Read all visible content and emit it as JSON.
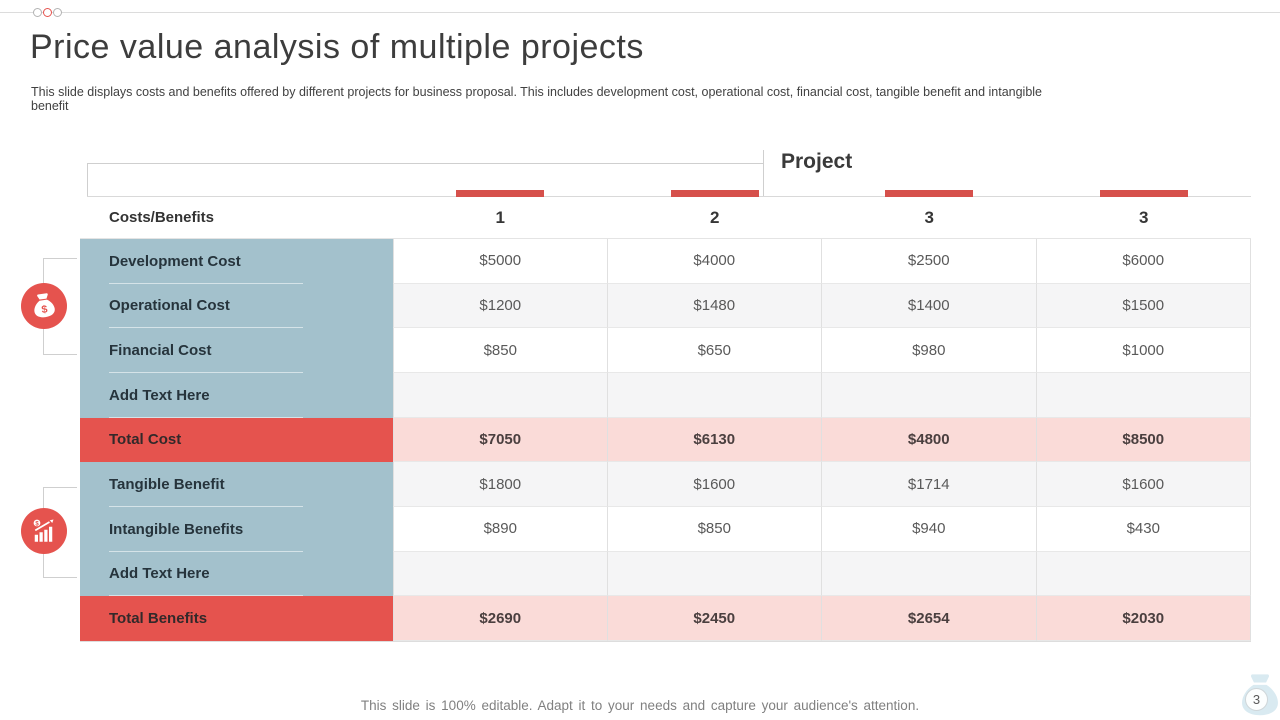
{
  "slide": {
    "title": "Price value analysis of multiple projects",
    "subtitle": "This slide displays costs and benefits offered by different projects for business proposal. This includes development cost, operational cost, financial cost, tangible benefit and intangible benefit",
    "footer": "This slide is 100% editable. Adapt it to your needs and capture your audience's attention.",
    "page_number": "3"
  },
  "table": {
    "group_label": "Project",
    "corner_header": "Costs/Benefits",
    "column_headers": [
      "1",
      "2",
      "3",
      "3"
    ],
    "rows": [
      {
        "label": "Development Cost",
        "type": "cost",
        "values": [
          "$5000",
          "$4000",
          "$2500",
          "$6000"
        ]
      },
      {
        "label": "Operational Cost",
        "type": "cost",
        "values": [
          "$1200",
          "$1480",
          "$1400",
          "$1500"
        ]
      },
      {
        "label": "Financial Cost",
        "type": "cost",
        "values": [
          "$850",
          "$650",
          "$980",
          "$1000"
        ]
      },
      {
        "label": "Add  Text Here",
        "type": "cost",
        "values": [
          "",
          "",
          "",
          ""
        ]
      },
      {
        "label": "Total Cost",
        "type": "total",
        "values": [
          "$7050",
          "$6130",
          "$4800",
          "$8500"
        ]
      },
      {
        "label": "Tangible Benefit",
        "type": "benefit",
        "values": [
          "$1800",
          "$1600",
          "$1714",
          "$1600"
        ]
      },
      {
        "label": "Intangible Benefits",
        "type": "benefit",
        "values": [
          "$890",
          "$850",
          "$940",
          "$430"
        ]
      },
      {
        "label": "Add  Text Here",
        "type": "benefit",
        "values": [
          "",
          "",
          "",
          ""
        ]
      },
      {
        "label": "Total Benefits",
        "type": "total",
        "values": [
          "$2690",
          "$2450",
          "$2654",
          "$2030"
        ]
      }
    ]
  },
  "icons": {
    "cost_group": "money-bag-icon",
    "benefit_group": "growth-chart-icon",
    "watermark": "money-bag-watermark-icon"
  },
  "colors": {
    "accent_red": "#e5534e",
    "tab_red": "#d6504b",
    "label_blue": "#a3c1cc",
    "total_pink": "#fadbd8",
    "alt_row": "#f5f5f6",
    "line_gray": "#d9d9d9",
    "watermark_blue": "#d9eaf1"
  }
}
